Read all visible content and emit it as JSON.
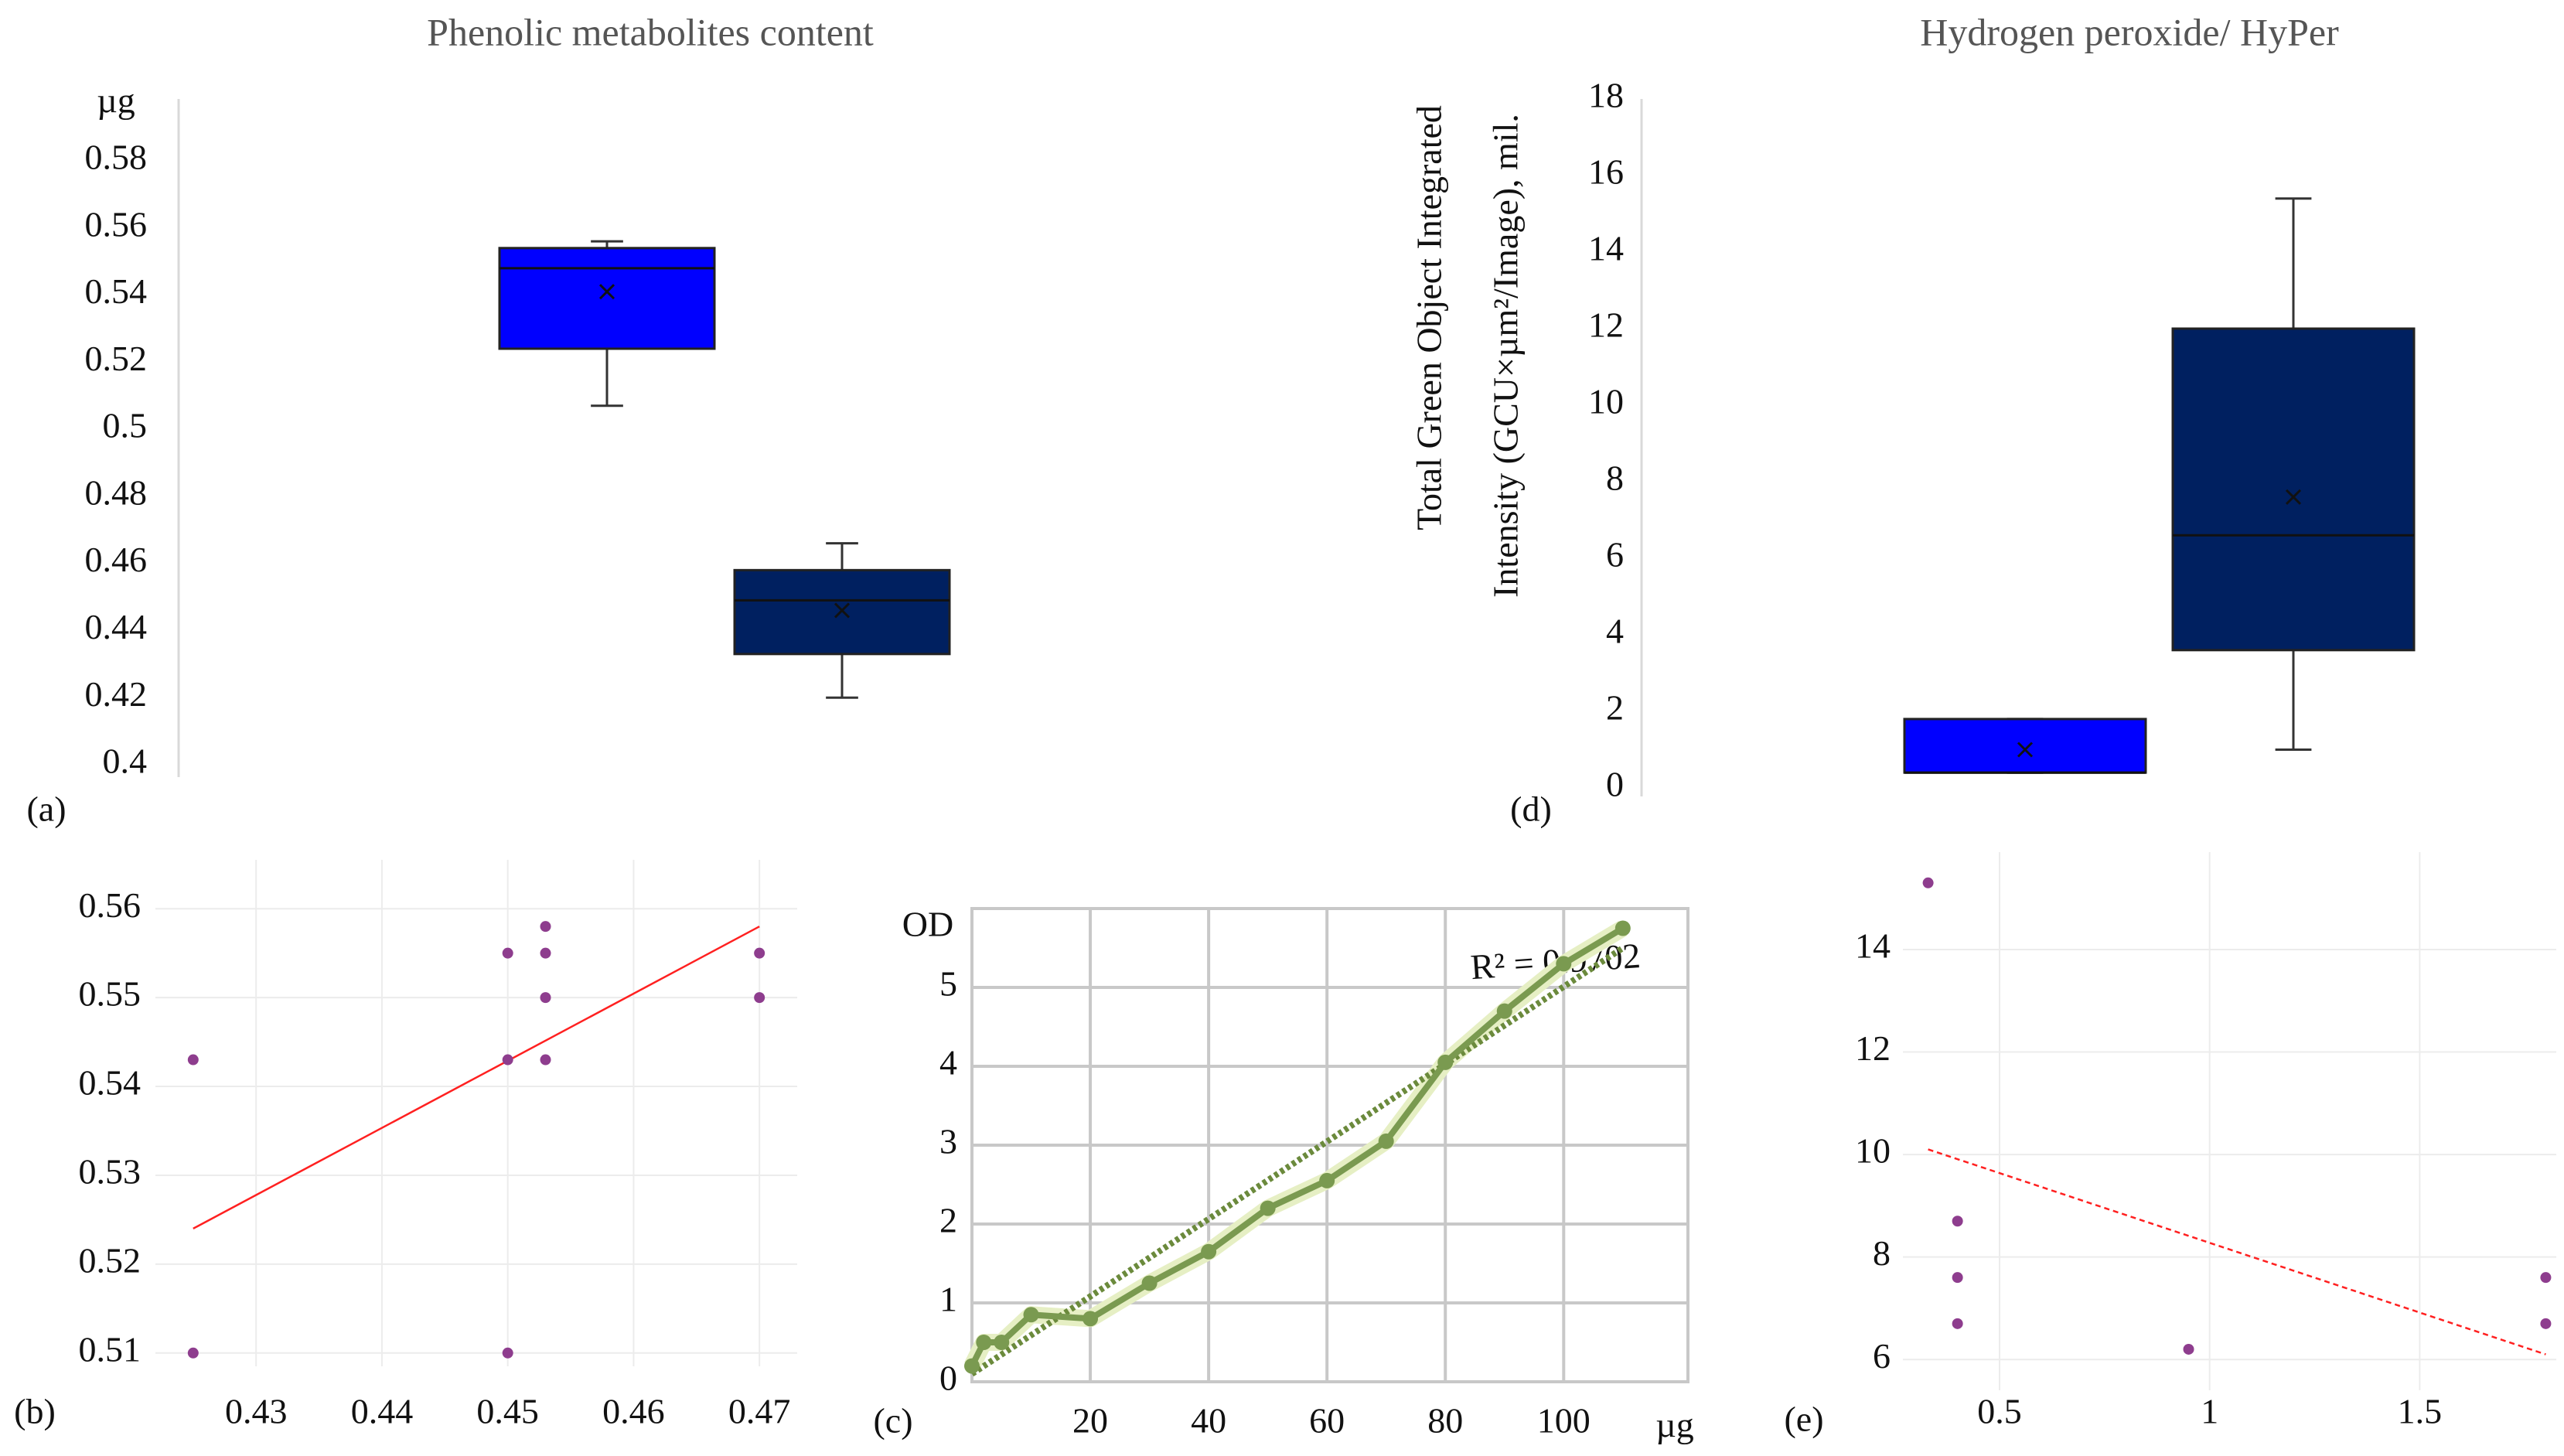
{
  "chart_data": [
    {
      "type": "box",
      "panel_label": "(a)",
      "title": "Phenolic metabolites content",
      "y_label": "µg",
      "ylim": [
        0.4,
        0.58
      ],
      "yticks": [
        0.4,
        0.42,
        0.44,
        0.46,
        0.48,
        0.5,
        0.52,
        0.54,
        0.56,
        0.58
      ],
      "boxes": [
        {
          "color": "#0000ff",
          "min": 0.507,
          "q1": 0.524,
          "median": 0.548,
          "q3": 0.554,
          "max": 0.556,
          "mean": 0.541
        },
        {
          "color": "#002060",
          "min": 0.42,
          "q1": 0.433,
          "median": 0.449,
          "q3": 0.458,
          "max": 0.466,
          "mean": 0.446
        }
      ]
    },
    {
      "type": "scatter",
      "panel_label": "(b)",
      "color": "#8e3d8e",
      "grid": true,
      "xlim": [
        0.422,
        0.473
      ],
      "xticks": [
        0.43,
        0.44,
        0.45,
        0.46,
        0.47
      ],
      "ylim": [
        0.5085,
        0.5655
      ],
      "yticks": [
        0.51,
        0.52,
        0.53,
        0.54,
        0.55,
        0.56
      ],
      "x": [
        0.425,
        0.425,
        0.45,
        0.45,
        0.45,
        0.453,
        0.453,
        0.453,
        0.453,
        0.47,
        0.47
      ],
      "y": [
        0.543,
        0.51,
        0.555,
        0.543,
        0.51,
        0.558,
        0.555,
        0.55,
        0.543,
        0.555,
        0.55
      ],
      "trendline": {
        "x": [
          0.425,
          0.47
        ],
        "y": [
          0.524,
          0.558
        ],
        "color": "#ff2020",
        "dashed": false
      }
    },
    {
      "type": "line",
      "panel_label": "(c)",
      "y_label": "OD",
      "x_label": "µg",
      "annotation": "R² = 0.9702",
      "color": "#7a9a50",
      "grid": true,
      "xlim": [
        0,
        121
      ],
      "xticks": [
        20,
        40,
        60,
        80,
        100
      ],
      "ylim": [
        0,
        6
      ],
      "yticks": [
        0,
        1,
        2,
        3,
        4,
        5
      ],
      "x": [
        0,
        2,
        5,
        10,
        20,
        30,
        40,
        50,
        60,
        70,
        80,
        90,
        100,
        110
      ],
      "values": [
        0.2,
        0.5,
        0.5,
        0.85,
        0.8,
        1.25,
        1.65,
        2.2,
        2.55,
        3.05,
        4.05,
        4.7,
        5.3,
        5.75
      ],
      "trendline": {
        "x": [
          0,
          110
        ],
        "y": [
          0.1,
          5.5
        ],
        "color": "#6b8a3c",
        "dashed": true
      }
    },
    {
      "type": "box",
      "panel_label": "(d)",
      "title": "Hydrogen peroxide/ HyPer",
      "y_label": [
        "Total Green Object Integrated",
        "Intensity (GCU×µm²/Image), mil."
      ],
      "ylim": [
        0,
        18
      ],
      "yticks": [
        0,
        2,
        4,
        6,
        8,
        10,
        12,
        14,
        16,
        18
      ],
      "boxes": [
        {
          "color": "#0000ff",
          "min": 0.4,
          "q1": 0.4,
          "median": 0.4,
          "q3": 1.8,
          "max": 1.8,
          "mean": 1.0
        },
        {
          "color": "#002060",
          "min": 1.0,
          "q1": 3.6,
          "median": 6.6,
          "q3": 12.0,
          "max": 15.4,
          "mean": 7.6
        }
      ]
    },
    {
      "type": "scatter",
      "panel_label": "(e)",
      "color": "#8e3d8e",
      "grid": true,
      "xlim": [
        0.27,
        1.825
      ],
      "xticks": [
        0.5,
        1,
        1.5
      ],
      "ylim": [
        5.4,
        15.9
      ],
      "yticks": [
        6,
        8,
        10,
        12,
        14
      ],
      "x": [
        0.33,
        0.4,
        0.4,
        0.4,
        0.95,
        1.8,
        1.8
      ],
      "y": [
        15.3,
        8.7,
        7.6,
        6.7,
        6.2,
        7.6,
        6.7
      ],
      "trendline": {
        "x": [
          0.33,
          1.8
        ],
        "y": [
          10.1,
          6.1
        ],
        "color": "#ff2020",
        "dashed": true
      }
    }
  ]
}
